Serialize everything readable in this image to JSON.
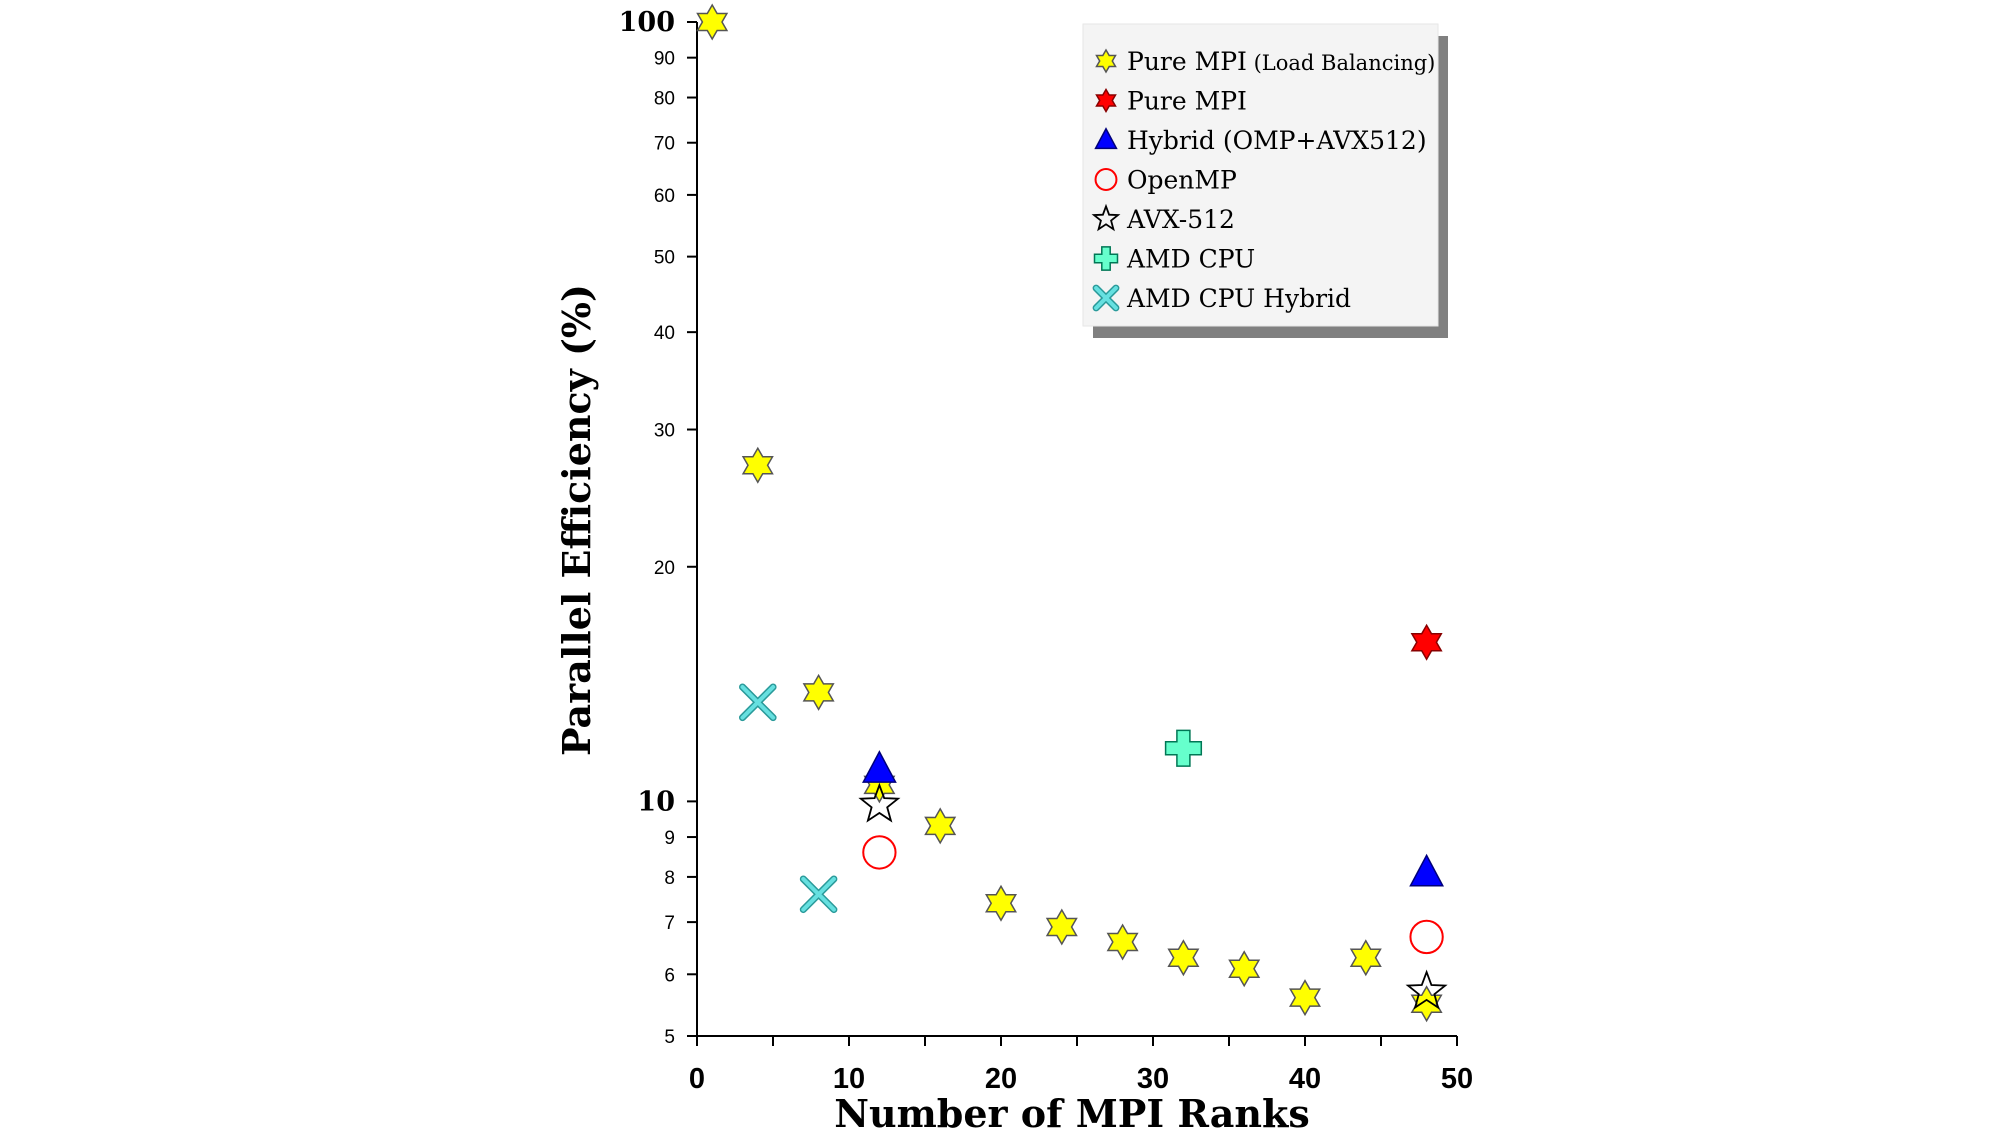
{
  "chart_data": {
    "type": "scatter",
    "title": "",
    "xlabel": "Number of MPI Ranks",
    "ylabel": "Parallel Efficiency (%)",
    "xlim": [
      0,
      50
    ],
    "ylim": [
      5,
      100
    ],
    "yscale": "log",
    "x_ticks": [
      "0",
      "10",
      "20",
      "30",
      "40",
      "50"
    ],
    "y_ticks": [
      {
        "value": 100,
        "label": "100",
        "major": true
      },
      {
        "value": 90,
        "label": "90",
        "major": false
      },
      {
        "value": 80,
        "label": "80",
        "major": false
      },
      {
        "value": 70,
        "label": "70",
        "major": false
      },
      {
        "value": 60,
        "label": "60",
        "major": false
      },
      {
        "value": 50,
        "label": "50",
        "major": false
      },
      {
        "value": 40,
        "label": "40",
        "major": false
      },
      {
        "value": 30,
        "label": "30",
        "major": false
      },
      {
        "value": 20,
        "label": "20",
        "major": false
      },
      {
        "value": 10,
        "label": "10",
        "major": true
      },
      {
        "value": 9,
        "label": "9",
        "major": false
      },
      {
        "value": 8,
        "label": "8",
        "major": false
      },
      {
        "value": 7,
        "label": "7",
        "major": false
      },
      {
        "value": 6,
        "label": "6",
        "major": false
      },
      {
        "value": 5,
        "label": "5",
        "major": false
      }
    ],
    "legend_position": "top-right",
    "series": [
      {
        "name": "Pure MPI",
        "name_suffix": "(Load Balancing)",
        "marker": "hexagram",
        "fill": "#ffff00",
        "stroke": "#555555",
        "points": [
          [
            1,
            100
          ],
          [
            4,
            27
          ],
          [
            8,
            13.8
          ],
          [
            12,
            10.5
          ],
          [
            16,
            9.3
          ],
          [
            20,
            7.4
          ],
          [
            24,
            6.9
          ],
          [
            28,
            6.6
          ],
          [
            32,
            6.3
          ],
          [
            36,
            6.1
          ],
          [
            40,
            5.6
          ],
          [
            44,
            6.3
          ],
          [
            48,
            5.5
          ]
        ]
      },
      {
        "name": "Pure MPI",
        "name_suffix": "",
        "marker": "hexagram",
        "fill": "#ff0000",
        "stroke": "#880000",
        "points": [
          [
            48,
            16
          ]
        ]
      },
      {
        "name": "Hybrid (OMP+AVX512)",
        "name_suffix": "",
        "marker": "triangle",
        "fill": "#0000ff",
        "stroke": "#00007a",
        "points": [
          [
            12,
            11
          ],
          [
            48,
            8.1
          ]
        ]
      },
      {
        "name": "OpenMP",
        "name_suffix": "",
        "marker": "circle-open",
        "fill": "none",
        "stroke": "#ff0000",
        "points": [
          [
            12,
            8.6
          ],
          [
            48,
            6.7
          ]
        ]
      },
      {
        "name": "AVX-512",
        "name_suffix": "",
        "marker": "star-open",
        "fill": "none",
        "stroke": "#000000",
        "points": [
          [
            12,
            9.9
          ],
          [
            48,
            5.7
          ]
        ]
      },
      {
        "name": "AMD CPU",
        "name_suffix": "",
        "marker": "plus",
        "fill": "#66ffcc",
        "stroke": "#007755",
        "points": [
          [
            32,
            11.7
          ]
        ]
      },
      {
        "name": "AMD CPU Hybrid",
        "name_suffix": "",
        "marker": "x",
        "fill": "#66e0e0",
        "stroke": "#2a9a9a",
        "points": [
          [
            4,
            13.4
          ],
          [
            8,
            7.6
          ]
        ]
      }
    ]
  }
}
